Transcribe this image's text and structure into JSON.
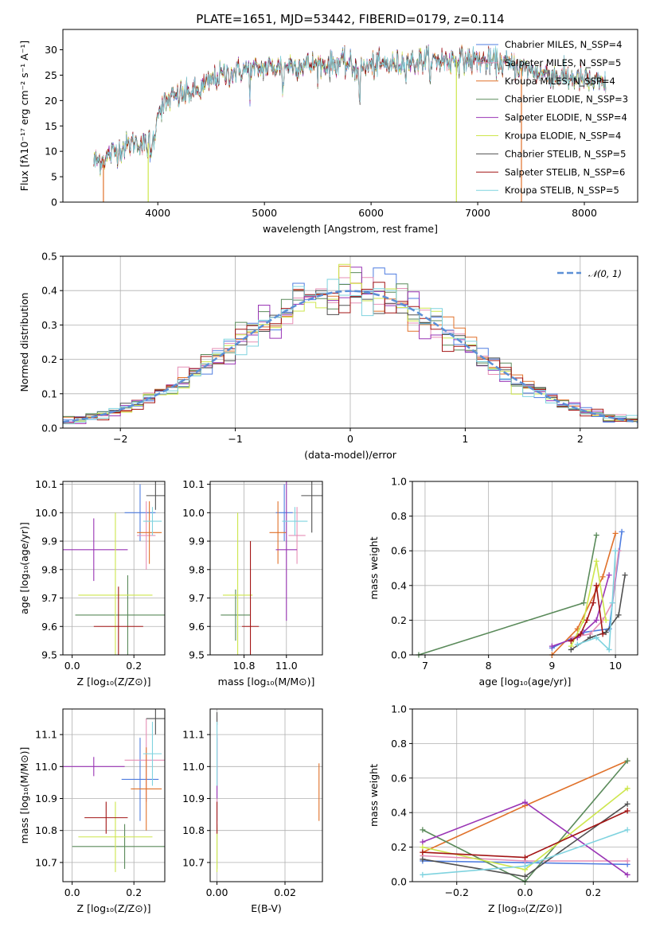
{
  "palette": {
    "Chabrier MILES": "#4f7de0",
    "Salpeter MILES": "#e68fb6",
    "Kroupa MILES": "#e0712a",
    "Chabrier ELODIE": "#5a8a5a",
    "Salpeter ELODIE": "#9a35b5",
    "Kroupa ELODIE": "#cde64c",
    "Chabrier STELIB": "#505050",
    "Salpeter STELIB": "#a31515",
    "Kroupa STELIB": "#7fd3df"
  },
  "chart_data": [
    {
      "id": "spectrum",
      "type": "line",
      "title": "PLATE=1651, MJD=53442, FIBERID=0179, z=0.114",
      "xlabel": "wavelength [Angstrom, rest frame]",
      "ylabel": "Flux [fλ10⁻¹⁷ erg cm⁻² s⁻¹ A⁻¹]",
      "xlim": [
        3110,
        8500
      ],
      "ylim": [
        0,
        34
      ],
      "xticks": [
        "4000",
        "5000",
        "6000",
        "7000",
        "8000"
      ],
      "yticks": [
        "0",
        "5",
        "10",
        "15",
        "20",
        "25",
        "30"
      ],
      "grid": false,
      "legend_position": "top-right",
      "legend": [
        "Chabrier MILES, N_SSP=4",
        "Salpeter MILES, N_SSP=5",
        "Kroupa MILES, N_SSP=4",
        "Chabrier ELODIE, N_SSP=3",
        "Salpeter ELODIE, N_SSP=4",
        "Kroupa ELODIE, N_SSP=4",
        "Chabrier STELIB, N_SSP=5",
        "Salpeter STELIB, N_SSP=6",
        "Kroupa STELIB, N_SSP=5"
      ],
      "continuum": {
        "x": [
          3400,
          3500,
          3600,
          3700,
          3800,
          3900,
          3950,
          4000,
          4100,
          4200,
          4300,
          4400,
          4500,
          4600,
          4700,
          4800,
          4900,
          5000,
          5100,
          5200,
          5300,
          5400,
          5500,
          5600,
          5700,
          5800,
          5900,
          6000,
          6100,
          6200,
          6300,
          6400,
          6500,
          6600,
          6700,
          6800,
          6900,
          7000,
          7100,
          7200,
          7300,
          7400,
          7500,
          7600,
          7700,
          7800,
          7900,
          8000,
          8100,
          8200
        ],
        "y": [
          8,
          8.5,
          10,
          11,
          12,
          11,
          14,
          18,
          20,
          21,
          21.5,
          22,
          24,
          25,
          25.5,
          26,
          26,
          26.5,
          26.5,
          27,
          27,
          27,
          27,
          27,
          27.5,
          27,
          26,
          27,
          27,
          27,
          27.5,
          27.5,
          28,
          28,
          28,
          28,
          28,
          28,
          27.5,
          27.5,
          27,
          26.5,
          26,
          25.5,
          25,
          24.5,
          24.5,
          24,
          23.5,
          23
        ]
      },
      "drops": [
        {
          "name": "Kroupa MILES",
          "x": 3490
        },
        {
          "name": "Kroupa ELODIE",
          "x": 3910
        },
        {
          "name": "Kroupa ELODIE",
          "x": 6800
        },
        {
          "name": "Kroupa MILES",
          "x": 7410
        }
      ]
    },
    {
      "id": "residuals",
      "type": "histogram",
      "xlabel": "(data-model)/error",
      "ylabel": "Normed distribution",
      "xlim": [
        -2.5,
        2.5
      ],
      "ylim": [
        0,
        0.5
      ],
      "xticks": [
        "−2",
        "−1",
        "0",
        "1",
        "2"
      ],
      "yticks": [
        "0.0",
        "0.1",
        "0.2",
        "0.3",
        "0.4",
        "0.5"
      ],
      "grid": true,
      "legend_position": "top-right",
      "legend": [
        "𝒩(0, 1)"
      ],
      "bin_width": 0.1
    },
    {
      "id": "age-vs-Z",
      "type": "scatter",
      "xlabel": "Z [log₁₀(Z/Z⊙)]",
      "ylabel": "age  [log₁₀(age/yr)]",
      "xlim": [
        -0.03,
        0.3
      ],
      "ylim": [
        9.5,
        10.11
      ],
      "xticks": [
        "0.0",
        "0.2"
      ],
      "yticks": [
        "9.5",
        "9.6",
        "9.7",
        "9.8",
        "9.9",
        "10.0",
        "10.1"
      ],
      "grid": true,
      "points": [
        {
          "name": "Chabrier MILES",
          "x": 0.22,
          "y": 10.0,
          "xerr": 0.05,
          "yerr": 0.1
        },
        {
          "name": "Salpeter MILES",
          "x": 0.24,
          "y": 9.92,
          "xerr": 0.03,
          "yerr": 0.12
        },
        {
          "name": "Kroupa MILES",
          "x": 0.25,
          "y": 9.93,
          "xerr": 0.04,
          "yerr": 0.11
        },
        {
          "name": "Chabrier ELODIE",
          "x": 0.18,
          "y": 9.64,
          "xerr": 0.17,
          "yerr": 0.14
        },
        {
          "name": "Salpeter ELODIE",
          "x": 0.07,
          "y": 9.87,
          "xerr": 0.11,
          "yerr": 0.11
        },
        {
          "name": "Kroupa ELODIE",
          "x": 0.14,
          "y": 9.71,
          "xerr": 0.12,
          "yerr": 0.29
        },
        {
          "name": "Chabrier STELIB",
          "x": 0.27,
          "y": 10.06,
          "xerr": 0.03,
          "yerr": 0.05
        },
        {
          "name": "Salpeter STELIB",
          "x": 0.15,
          "y": 9.6,
          "xerr": 0.08,
          "yerr": 0.14
        },
        {
          "name": "Kroupa STELIB",
          "x": 0.26,
          "y": 9.97,
          "xerr": 0.03,
          "yerr": 0.05
        }
      ]
    },
    {
      "id": "age-vs-mass",
      "type": "scatter",
      "xlabel": "mass [log₁₀(M/M⊙)]",
      "ylabel": "",
      "xlim": [
        10.64,
        11.17
      ],
      "ylim": [
        9.5,
        10.11
      ],
      "xticks": [
        "10.8",
        "11.0"
      ],
      "yticks": [
        "9.5",
        "9.6",
        "9.7",
        "9.8",
        "9.9",
        "10.0",
        "10.1"
      ],
      "grid": true,
      "points": [
        {
          "name": "Chabrier MILES",
          "x": 10.99,
          "y": 10.0,
          "xerr": 0.04,
          "yerr": 0.1
        },
        {
          "name": "Salpeter MILES",
          "x": 11.05,
          "y": 9.92,
          "xerr": 0.04,
          "yerr": 0.1
        },
        {
          "name": "Kroupa MILES",
          "x": 10.96,
          "y": 9.93,
          "xerr": 0.04,
          "yerr": 0.11
        },
        {
          "name": "Chabrier ELODIE",
          "x": 10.76,
          "y": 9.64,
          "xerr": 0.07,
          "yerr": 0.09
        },
        {
          "name": "Salpeter ELODIE",
          "x": 11.0,
          "y": 9.87,
          "xerr": 0.05,
          "yerr": 0.25
        },
        {
          "name": "Kroupa ELODIE",
          "x": 10.77,
          "y": 9.71,
          "xerr": 0.07,
          "yerr": 0.29
        },
        {
          "name": "Chabrier STELIB",
          "x": 11.12,
          "y": 10.06,
          "xerr": 0.05,
          "yerr": 0.13
        },
        {
          "name": "Salpeter STELIB",
          "x": 10.83,
          "y": 9.6,
          "xerr": 0.04,
          "yerr": 0.3
        },
        {
          "name": "Kroupa STELIB",
          "x": 11.04,
          "y": 9.97,
          "xerr": 0.06,
          "yerr": 0.05
        }
      ]
    },
    {
      "id": "massweight-vs-age",
      "type": "line",
      "xlabel": "age  [log₁₀(age/yr)]",
      "ylabel": "mass weight",
      "xlim": [
        6.8,
        10.35
      ],
      "ylim": [
        0,
        1
      ],
      "xticks": [
        "7",
        "8",
        "9",
        "10"
      ],
      "yticks": [
        "0.0",
        "0.2",
        "0.4",
        "0.6",
        "0.8",
        "1.0"
      ],
      "grid": true,
      "series": [
        {
          "name": "Chabrier MILES",
          "x": [
            9.0,
            9.5,
            9.9,
            10.1
          ],
          "y": [
            0.04,
            0.13,
            0.15,
            0.71
          ]
        },
        {
          "name": "Salpeter MILES",
          "x": [
            9.3,
            9.6,
            9.8,
            9.95,
            10.05
          ],
          "y": [
            0.1,
            0.12,
            0.2,
            0.3,
            0.6
          ]
        },
        {
          "name": "Kroupa MILES",
          "x": [
            9.0,
            9.4,
            9.8,
            10.0
          ],
          "y": [
            0.0,
            0.15,
            0.45,
            0.7
          ]
        },
        {
          "name": "Chabrier ELODIE",
          "x": [
            6.9,
            9.5,
            9.7
          ],
          "y": [
            0.0,
            0.3,
            0.69
          ]
        },
        {
          "name": "Salpeter ELODIE",
          "x": [
            9.0,
            9.4,
            9.7,
            9.9
          ],
          "y": [
            0.05,
            0.1,
            0.2,
            0.46
          ]
        },
        {
          "name": "Kroupa ELODIE",
          "x": [
            9.3,
            9.5,
            9.7,
            9.85
          ],
          "y": [
            0.05,
            0.2,
            0.54,
            0.2
          ]
        },
        {
          "name": "Chabrier STELIB",
          "x": [
            9.3,
            9.6,
            9.85,
            10.05,
            10.15
          ],
          "y": [
            0.03,
            0.1,
            0.13,
            0.23,
            0.46
          ]
        },
        {
          "name": "Salpeter STELIB",
          "x": [
            9.3,
            9.45,
            9.55,
            9.65,
            9.7,
            9.8
          ],
          "y": [
            0.08,
            0.12,
            0.2,
            0.3,
            0.4,
            0.12
          ]
        },
        {
          "name": "Kroupa STELIB",
          "x": [
            9.4,
            9.7,
            9.9,
            9.95,
            10.0
          ],
          "y": [
            0.06,
            0.1,
            0.03,
            0.3,
            0.6
          ]
        }
      ]
    },
    {
      "id": "mass-vs-Z",
      "type": "scatter",
      "xlabel": "Z [log₁₀(Z/Z⊙)]",
      "ylabel": "mass [log₁₀(M/M⊙)]",
      "xlim": [
        -0.03,
        0.3
      ],
      "ylim": [
        10.64,
        11.18
      ],
      "xticks": [
        "0.0",
        "0.2"
      ],
      "yticks": [
        "10.7",
        "10.8",
        "10.9",
        "11.0",
        "11.1"
      ],
      "grid": true,
      "points": [
        {
          "name": "Chabrier MILES",
          "x": 0.22,
          "y": 10.96,
          "xerr": 0.06,
          "yerr": 0.13
        },
        {
          "name": "Salpeter MILES",
          "x": 0.24,
          "y": 11.02,
          "xerr": 0.07,
          "yerr": 0.13
        },
        {
          "name": "Kroupa MILES",
          "x": 0.24,
          "y": 10.93,
          "xerr": 0.05,
          "yerr": 0.13
        },
        {
          "name": "Chabrier ELODIE",
          "x": 0.17,
          "y": 10.75,
          "xerr": 0.17,
          "yerr": 0.07
        },
        {
          "name": "Salpeter ELODIE",
          "x": 0.07,
          "y": 11.0,
          "xerr": 0.1,
          "yerr": 0.03
        },
        {
          "name": "Kroupa ELODIE",
          "x": 0.14,
          "y": 10.78,
          "xerr": 0.12,
          "yerr": 0.11
        },
        {
          "name": "Chabrier STELIB",
          "x": 0.27,
          "y": 11.15,
          "xerr": 0.03,
          "yerr": 0.05
        },
        {
          "name": "Salpeter STELIB",
          "x": 0.11,
          "y": 10.84,
          "xerr": 0.07,
          "yerr": 0.05
        },
        {
          "name": "Kroupa STELIB",
          "x": 0.26,
          "y": 11.04,
          "xerr": 0.03,
          "yerr": 0.1
        }
      ]
    },
    {
      "id": "mass-vs-EBV",
      "type": "scatter",
      "xlabel": "E(B-V)",
      "ylabel": "",
      "xlim": [
        -0.002,
        0.031
      ],
      "ylim": [
        10.64,
        11.18
      ],
      "xticks": [
        "0.00",
        "0.02"
      ],
      "yticks": [
        "10.7",
        "10.8",
        "10.9",
        "11.0",
        "11.1"
      ],
      "grid": true,
      "points": [
        {
          "name": "Chabrier MILES",
          "x": 0.0,
          "y": 10.96,
          "xerr": 0,
          "yerr": 0.13
        },
        {
          "name": "Salpeter MILES",
          "x": 0.0,
          "y": 11.02,
          "xerr": 0,
          "yerr": 0.13
        },
        {
          "name": "Kroupa MILES",
          "x": 0.03,
          "y": 10.92,
          "xerr": 0,
          "yerr": 0.09
        },
        {
          "name": "Chabrier ELODIE",
          "x": 0.0,
          "y": 10.75,
          "xerr": 0,
          "yerr": 0.07
        },
        {
          "name": "Salpeter ELODIE",
          "x": 0.0,
          "y": 11.0,
          "xerr": 0,
          "yerr": 0.1
        },
        {
          "name": "Kroupa ELODIE",
          "x": 0.0,
          "y": 10.74,
          "xerr": 0,
          "yerr": 0.07
        },
        {
          "name": "Chabrier STELIB",
          "x": 0.0,
          "y": 11.15,
          "xerr": 0,
          "yerr": 0.02
        },
        {
          "name": "Salpeter STELIB",
          "x": 0.0,
          "y": 10.84,
          "xerr": 0,
          "yerr": 0.05
        },
        {
          "name": "Kroupa STELIB",
          "x": 0.0,
          "y": 11.04,
          "xerr": 0,
          "yerr": 0.1
        }
      ]
    },
    {
      "id": "massweight-vs-Z",
      "type": "line",
      "xlabel": "Z [log₁₀(Z/Z⊙)]",
      "ylabel": "mass weight",
      "xlim": [
        -0.33,
        0.33
      ],
      "ylim": [
        0,
        1
      ],
      "xticks": [
        "−0.2",
        "0.0",
        "0.2"
      ],
      "yticks": [
        "0.0",
        "0.2",
        "0.4",
        "0.6",
        "0.8",
        "1.0"
      ],
      "grid": true,
      "series": [
        {
          "name": "Chabrier MILES",
          "x": [
            -0.3,
            0.0,
            0.3
          ],
          "y": [
            0.12,
            0.11,
            0.1
          ]
        },
        {
          "name": "Salpeter MILES",
          "x": [
            -0.3,
            0.0,
            0.3
          ],
          "y": [
            0.15,
            0.12,
            0.12
          ]
        },
        {
          "name": "Kroupa MILES",
          "x": [
            -0.3,
            0.0,
            0.3
          ],
          "y": [
            0.17,
            0.44,
            0.7
          ]
        },
        {
          "name": "Chabrier ELODIE",
          "x": [
            -0.3,
            0.0,
            0.3
          ],
          "y": [
            0.3,
            0.0,
            0.7
          ]
        },
        {
          "name": "Salpeter ELODIE",
          "x": [
            -0.3,
            0.0,
            0.3
          ],
          "y": [
            0.23,
            0.46,
            0.04
          ]
        },
        {
          "name": "Kroupa ELODIE",
          "x": [
            -0.3,
            0.0,
            0.3
          ],
          "y": [
            0.2,
            0.07,
            0.54
          ]
        },
        {
          "name": "Chabrier STELIB",
          "x": [
            -0.3,
            0.0,
            0.3
          ],
          "y": [
            0.13,
            0.03,
            0.45
          ]
        },
        {
          "name": "Salpeter STELIB",
          "x": [
            -0.3,
            0.0,
            0.3
          ],
          "y": [
            0.17,
            0.14,
            0.41
          ]
        },
        {
          "name": "Kroupa STELIB",
          "x": [
            -0.3,
            0.0,
            0.3
          ],
          "y": [
            0.04,
            0.09,
            0.3
          ]
        }
      ]
    }
  ]
}
